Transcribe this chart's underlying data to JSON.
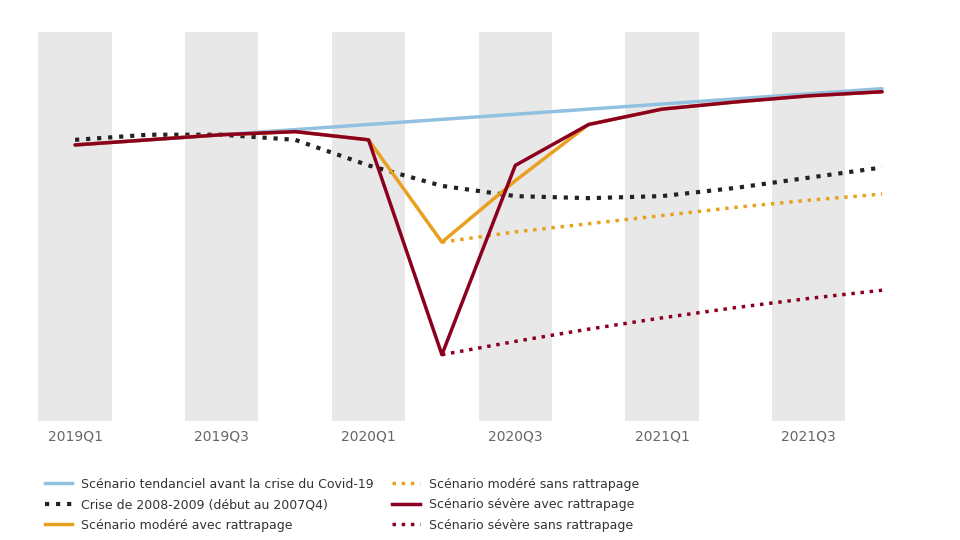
{
  "tick_labels": [
    "2019Q1",
    "2019Q3",
    "2020Q1",
    "2020Q3",
    "2021Q1",
    "2021Q3"
  ],
  "tick_positions": [
    0,
    2,
    4,
    6,
    8,
    10
  ],
  "background_color": "#ffffff",
  "stripe_color": "#e8e8e8",
  "xlim": [
    -0.5,
    11.8
  ],
  "ylim": [
    74,
    112
  ],
  "legend_fontsize": 9,
  "series": {
    "tendanciel": {
      "label": "Scénario tendanciel avant la crise du Covid-19",
      "color": "#92c0e0",
      "linestyle": "solid",
      "linewidth": 2.5,
      "x": [
        0,
        1,
        2,
        3,
        4,
        5,
        6,
        7,
        8,
        9,
        10,
        11
      ],
      "y": [
        101.0,
        101.5,
        102.0,
        102.5,
        103.0,
        103.5,
        104.0,
        104.5,
        105.0,
        105.5,
        106.0,
        106.5
      ]
    },
    "crise_2008": {
      "label": "Crise de 2008-2009 (début au 2007Q4)",
      "color": "#222222",
      "linestyle": "dotted",
      "linewidth": 3.0,
      "x": [
        0,
        1,
        2,
        3,
        4,
        5,
        6,
        7,
        8,
        9,
        10,
        11
      ],
      "y": [
        101.5,
        102.0,
        102.0,
        101.5,
        99.0,
        97.0,
        96.0,
        95.8,
        96.0,
        96.8,
        97.8,
        98.8
      ]
    },
    "modere_avec": {
      "label": "Scénario modéré avec rattrapage",
      "color": "#e8a020",
      "linestyle": "solid",
      "linewidth": 2.5,
      "x": [
        0,
        1,
        2,
        3,
        4,
        5,
        6,
        7,
        8,
        9,
        10,
        11
      ],
      "y": [
        101.0,
        101.5,
        102.0,
        102.3,
        101.5,
        91.5,
        97.5,
        103.0,
        104.5,
        105.2,
        105.8,
        106.2
      ]
    },
    "modere_sans": {
      "label": "Scénario modéré sans rattrapage",
      "color": "#e8a020",
      "linestyle": "dotted",
      "linewidth": 2.5,
      "x": [
        5,
        6,
        7,
        8,
        9,
        10,
        11
      ],
      "y": [
        91.5,
        92.5,
        93.3,
        94.1,
        94.9,
        95.6,
        96.2
      ]
    },
    "severe_avec": {
      "label": "Scénario sévère avec rattrapage",
      "color": "#8b0020",
      "linestyle": "solid",
      "linewidth": 2.5,
      "x": [
        0,
        1,
        2,
        3,
        4,
        5,
        6,
        7,
        8,
        9,
        10,
        11
      ],
      "y": [
        101.0,
        101.5,
        102.0,
        102.3,
        101.5,
        80.5,
        99.0,
        103.0,
        104.5,
        105.2,
        105.8,
        106.2
      ]
    },
    "severe_sans": {
      "label": "Scénario sévère sans rattrapage",
      "color": "#8b0020",
      "linestyle": "dotted",
      "linewidth": 2.5,
      "x": [
        5,
        6,
        7,
        8,
        9,
        10,
        11
      ],
      "y": [
        80.5,
        81.8,
        83.0,
        84.1,
        85.1,
        86.0,
        86.8
      ]
    }
  },
  "legend_order": [
    "tendanciel",
    "crise_2008",
    "modere_avec",
    "modere_sans",
    "severe_avec",
    "severe_sans"
  ]
}
